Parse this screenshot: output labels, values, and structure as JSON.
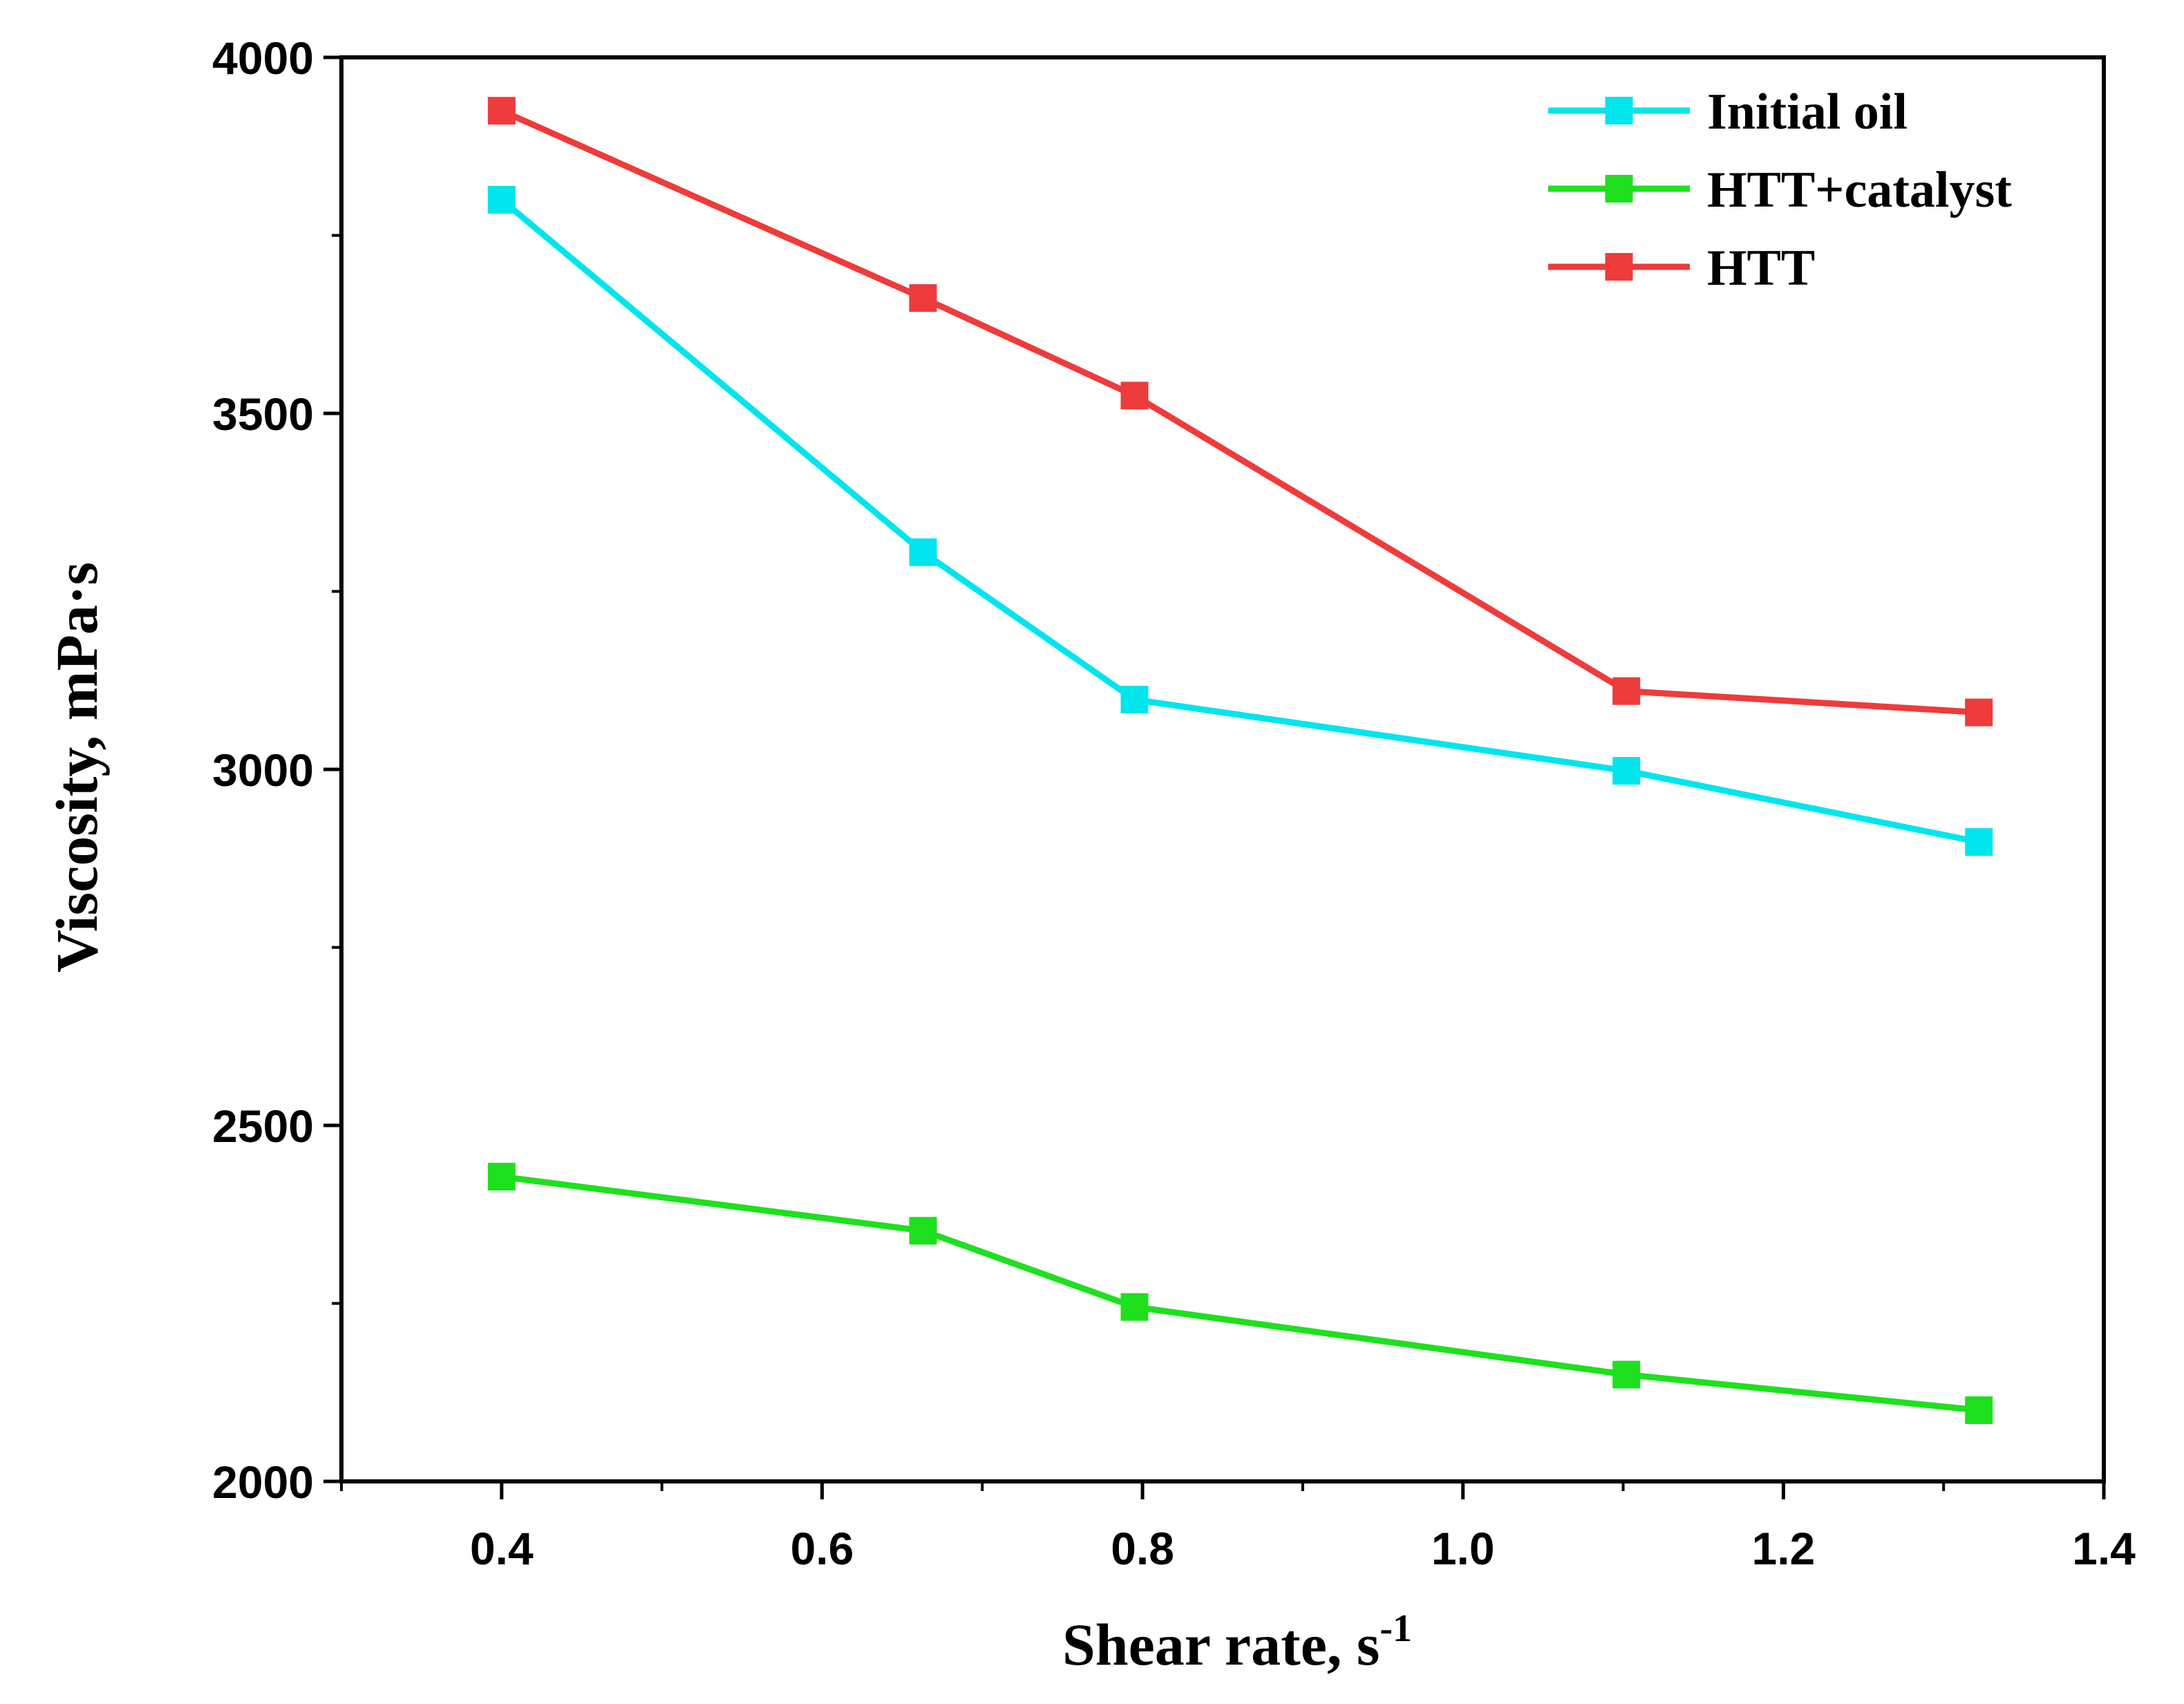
{
  "chart_data": {
    "type": "line",
    "title": "",
    "xlabel": "Shear rate, s",
    "xlabel_superscript": "-1",
    "ylabel": "Viscosity, mPa·s",
    "xlim": [
      0.3,
      1.4
    ],
    "ylim": [
      2000,
      4000
    ],
    "xticks": [
      "0.4",
      "0.6",
      "0.8",
      "1.0",
      "1.2",
      "1.4"
    ],
    "yticks": [
      "2000",
      "2500",
      "3000",
      "3500",
      "4000"
    ],
    "legend_position": "top-right",
    "grid": false,
    "x": [
      0.4,
      0.663,
      0.795,
      1.102,
      1.322
    ],
    "series": [
      {
        "name": "Initial oil",
        "color": "#00e5ee",
        "marker": "square",
        "values": [
          3800,
          3305,
          3098,
          2998,
          2898
        ]
      },
      {
        "name": "HTT+catalyst",
        "color": "#1ee01e",
        "marker": "square",
        "values": [
          2428,
          2352,
          2245,
          2150,
          2100
        ]
      },
      {
        "name": "HTT",
        "color": "#ee3b3b",
        "marker": "square",
        "values": [
          3925,
          3662,
          3525,
          3110,
          3080
        ]
      }
    ]
  }
}
